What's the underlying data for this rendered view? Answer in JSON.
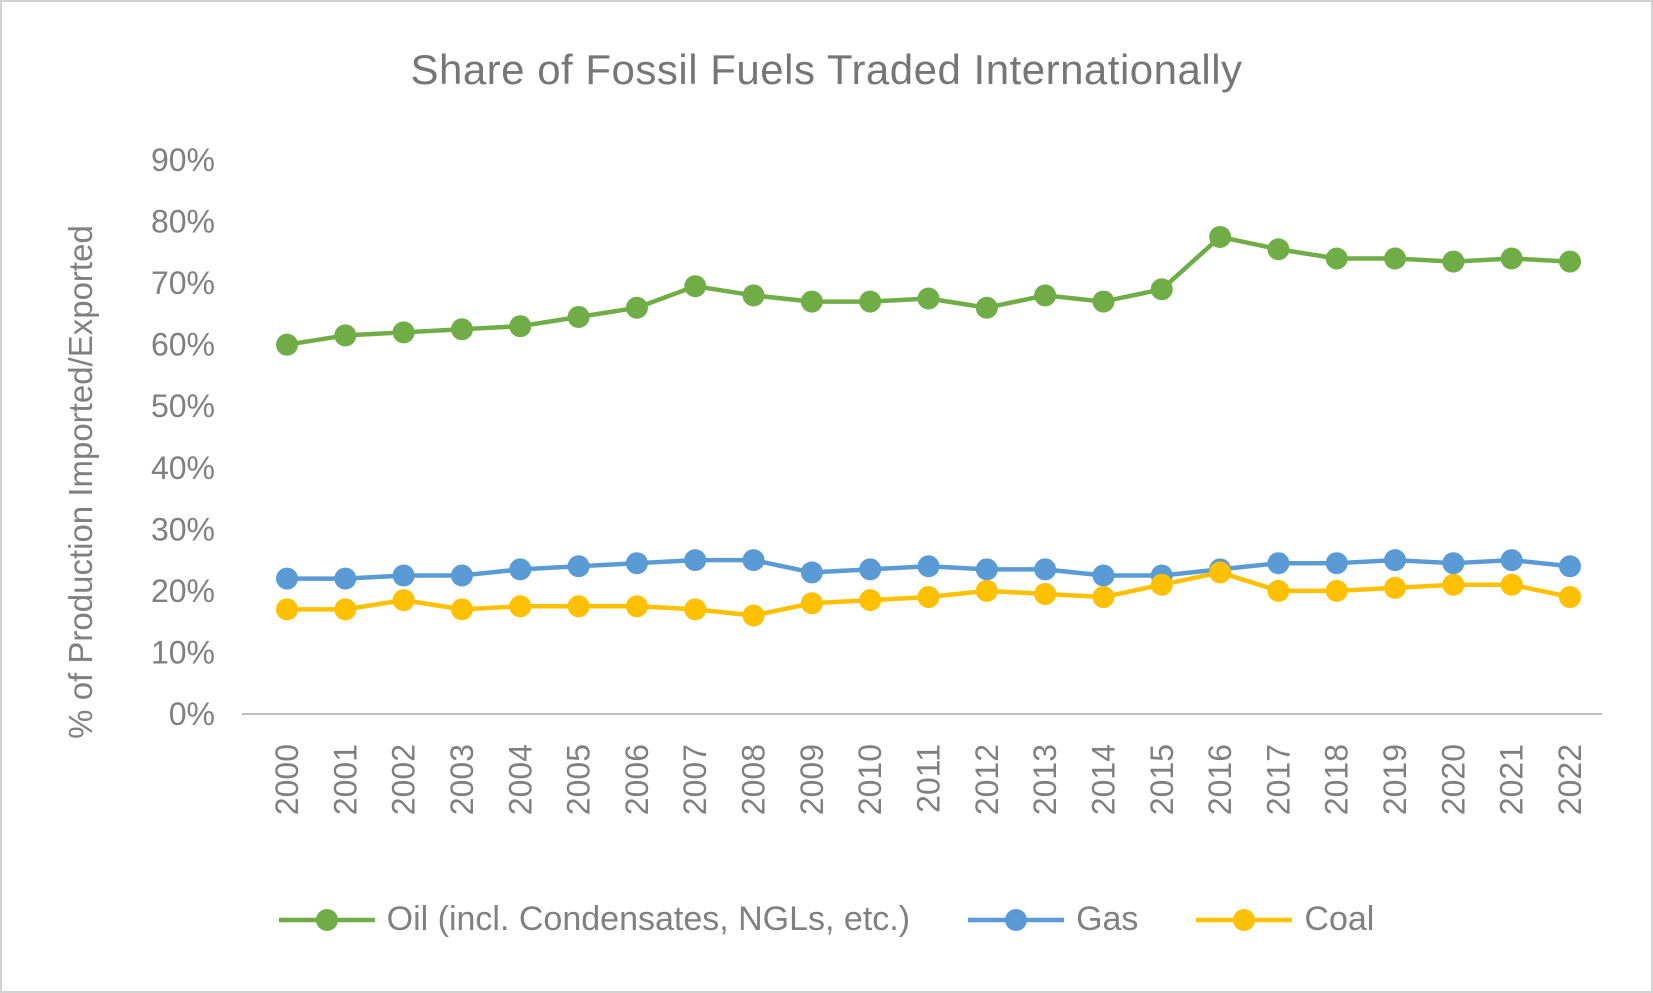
{
  "title": "Share of Fossil Fuels Traded Internationally",
  "colors": {
    "oil": "#70AD47",
    "gas": "#5B9BD5",
    "coal": "#FFC000",
    "text": "#808080",
    "axis_line": "#BFBFBF"
  },
  "chart_data": {
    "type": "line",
    "title": "Share of Fossil Fuels Traded Internationally",
    "xlabel": "",
    "ylabel": "% of Production Imported/Exported",
    "ylim": [
      0,
      90
    ],
    "y_tick_step": 10,
    "y_ticks": [
      "0%",
      "10%",
      "20%",
      "30%",
      "40%",
      "50%",
      "60%",
      "70%",
      "80%",
      "90%"
    ],
    "grid": false,
    "legend_position": "bottom",
    "x": [
      "2000",
      "2001",
      "2002",
      "2003",
      "2004",
      "2005",
      "2006",
      "2007",
      "2008",
      "2009",
      "2010",
      "2011",
      "2012",
      "2013",
      "2014",
      "2015",
      "2016",
      "2017",
      "2018",
      "2019",
      "2020",
      "2021",
      "2022"
    ],
    "series": [
      {
        "name": "Oil (incl. Condensates, NGLs, etc.)",
        "color": "#70AD47",
        "values": [
          60,
          61.5,
          62,
          62.5,
          63,
          64.5,
          66,
          69.5,
          68,
          67,
          67,
          67.5,
          66,
          68,
          67,
          69,
          77.5,
          75.5,
          74,
          74,
          73.5,
          74,
          73.5
        ]
      },
      {
        "name": "Gas",
        "color": "#5B9BD5",
        "values": [
          22,
          22,
          22.5,
          22.5,
          23.5,
          24,
          24.5,
          25,
          25,
          23,
          23.5,
          24,
          23.5,
          23.5,
          22.5,
          22.5,
          23.5,
          24.5,
          24.5,
          25,
          24.5,
          25,
          24
        ]
      },
      {
        "name": "Coal",
        "color": "#FFC000",
        "values": [
          17,
          17,
          18.5,
          17,
          17.5,
          17.5,
          17.5,
          17,
          16,
          18,
          18.5,
          19,
          20,
          19.5,
          19,
          21,
          23,
          20,
          20,
          20.5,
          21,
          21,
          19
        ]
      }
    ]
  }
}
